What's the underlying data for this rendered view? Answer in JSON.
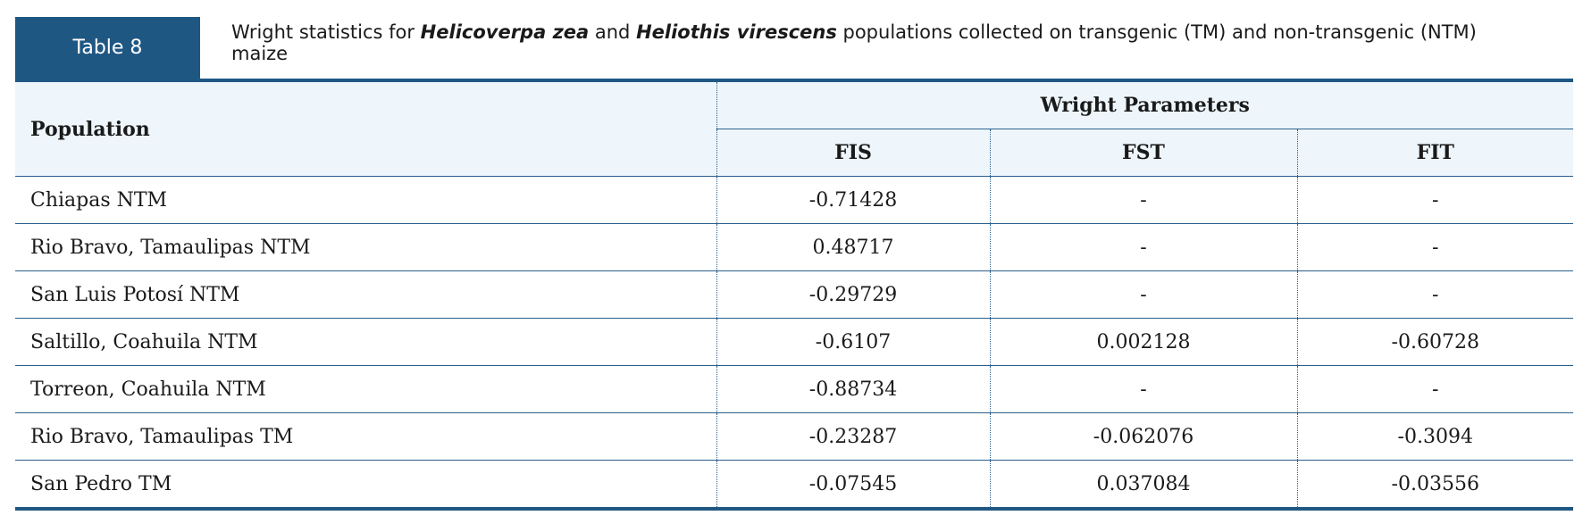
{
  "label": "Table 8",
  "caption": [
    "Wright statistics for ",
    "Helicoverpa zea",
    " and ",
    "Heliothis virescens",
    " populations collected on transgenic (TM) and non-transgenic (NTM) maize"
  ],
  "table": {
    "header": {
      "population": "Population",
      "group": "Wright Parameters",
      "columns": [
        "FIS",
        "FST",
        "FIT"
      ]
    },
    "rows": [
      [
        "Chiapas NTM",
        "-0.71428",
        "-",
        "-"
      ],
      [
        "Rio Bravo, Tamaulipas NTM",
        "0.48717",
        "-",
        "-"
      ],
      [
        "San Luis Potosí NTM",
        "-0.29729",
        "-",
        "-"
      ],
      [
        "Saltillo, Coahuila NTM",
        "-0.6107",
        "0.002128",
        "-0.60728"
      ],
      [
        "Torreon, Coahuila NTM",
        "-0.88734",
        "-",
        "-"
      ],
      [
        "Rio Bravo, Tamaulipas TM",
        "-0.23287",
        "-0.062076",
        "-0.3094"
      ],
      [
        "San Pedro TM",
        "-0.07545",
        "0.037084",
        "-0.03556"
      ]
    ]
  }
}
